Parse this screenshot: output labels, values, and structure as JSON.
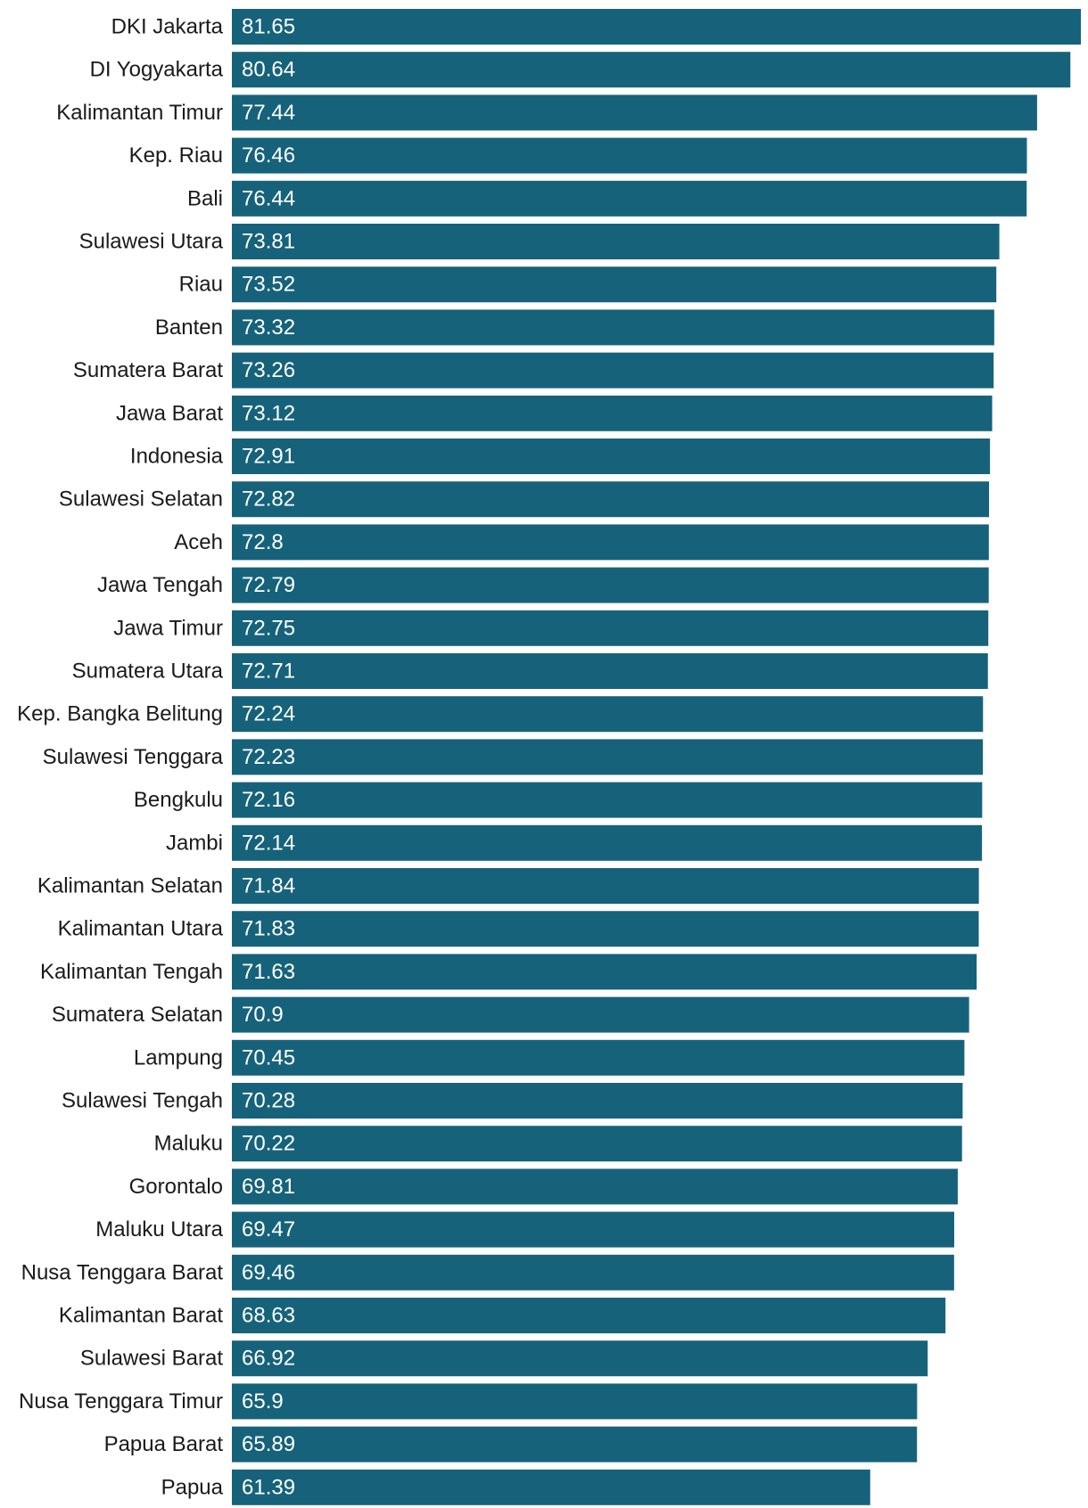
{
  "chart_data": {
    "type": "bar",
    "orientation": "horizontal",
    "title": "",
    "xlabel": "",
    "ylabel": "",
    "xlim": [
      0,
      81.65
    ],
    "grid": false,
    "legend": "none",
    "bar_color": "#17627b",
    "categories": [
      "DKI Jakarta",
      "DI Yogyakarta",
      "Kalimantan Timur",
      "Kep. Riau",
      "Bali",
      "Sulawesi Utara",
      "Riau",
      "Banten",
      "Sumatera Barat",
      "Jawa Barat",
      "Indonesia",
      "Sulawesi Selatan",
      "Aceh",
      "Jawa Tengah",
      "Jawa Timur",
      "Sumatera Utara",
      "Kep. Bangka Belitung",
      "Sulawesi Tenggara",
      "Bengkulu",
      "Jambi",
      "Kalimantan Selatan",
      "Kalimantan Utara",
      "Kalimantan Tengah",
      "Sumatera Selatan",
      "Lampung",
      "Sulawesi Tengah",
      "Maluku",
      "Gorontalo",
      "Maluku Utara",
      "Nusa Tenggara Barat",
      "Kalimantan Barat",
      "Sulawesi Barat",
      "Nusa Tenggara Timur",
      "Papua Barat",
      "Papua"
    ],
    "values": [
      81.65,
      80.64,
      77.44,
      76.46,
      76.44,
      73.81,
      73.52,
      73.32,
      73.26,
      73.12,
      72.91,
      72.82,
      72.8,
      72.79,
      72.75,
      72.71,
      72.24,
      72.23,
      72.16,
      72.14,
      71.84,
      71.83,
      71.63,
      70.9,
      70.45,
      70.28,
      70.22,
      69.81,
      69.47,
      69.46,
      68.63,
      66.92,
      65.9,
      65.89,
      61.39
    ],
    "value_labels": [
      "81.65",
      "80.64",
      "77.44",
      "76.46",
      "76.44",
      "73.81",
      "73.52",
      "73.32",
      "73.26",
      "73.12",
      "72.91",
      "72.82",
      "72.8",
      "72.79",
      "72.75",
      "72.71",
      "72.24",
      "72.23",
      "72.16",
      "72.14",
      "71.84",
      "71.83",
      "71.63",
      "70.9",
      "70.45",
      "70.28",
      "70.22",
      "69.81",
      "69.47",
      "69.46",
      "68.63",
      "66.92",
      "65.9",
      "65.89",
      "61.39"
    ]
  }
}
